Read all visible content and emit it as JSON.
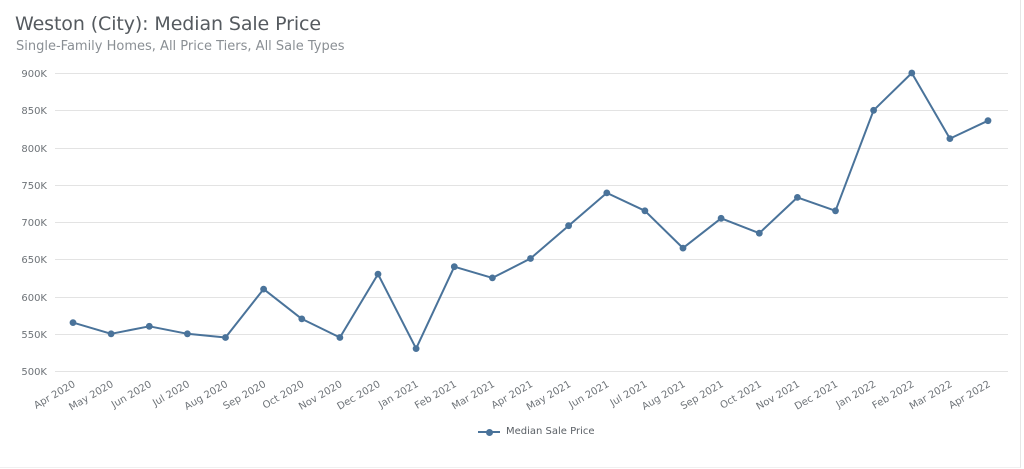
{
  "header": {
    "title": "Weston (City): Median Sale Price",
    "subtitle": "Single-Family Homes, All Price Tiers, All Sale Types"
  },
  "legend": {
    "label": "Median Sale Price",
    "color": "#4a739a"
  },
  "chart_data": {
    "type": "line",
    "title": "Weston (City): Median Sale Price",
    "subtitle": "Single-Family Homes, All Price Tiers, All Sale Types",
    "xlabel": "",
    "ylabel": "",
    "ylim": [
      500000,
      900000
    ],
    "yticks": [
      500000,
      550000,
      600000,
      650000,
      700000,
      750000,
      800000,
      850000,
      900000
    ],
    "ytick_labels": [
      "500K",
      "550K",
      "600K",
      "650K",
      "700K",
      "750K",
      "800K",
      "850K",
      "900K"
    ],
    "grid": true,
    "legend_position": "bottom",
    "categories": [
      "Apr 2020",
      "May 2020",
      "Jun 2020",
      "Jul 2020",
      "Aug 2020",
      "Sep 2020",
      "Oct 2020",
      "Nov 2020",
      "Dec 2020",
      "Jan 2021",
      "Feb 2021",
      "Mar 2021",
      "Apr 2021",
      "May 2021",
      "Jun 2021",
      "Jul 2021",
      "Aug 2021",
      "Sep 2021",
      "Oct 2021",
      "Nov 2021",
      "Dec 2021",
      "Jan 2022",
      "Feb 2022",
      "Mar 2022",
      "Apr 2022"
    ],
    "series": [
      {
        "name": "Median Sale Price",
        "color": "#4a739a",
        "values": [
          565000,
          550000,
          560000,
          550000,
          545000,
          610000,
          570000,
          545000,
          630000,
          530000,
          640000,
          625000,
          651000,
          695000,
          739000,
          715000,
          665000,
          705000,
          685000,
          733000,
          715000,
          850000,
          900000,
          812000,
          836000
        ]
      }
    ]
  }
}
